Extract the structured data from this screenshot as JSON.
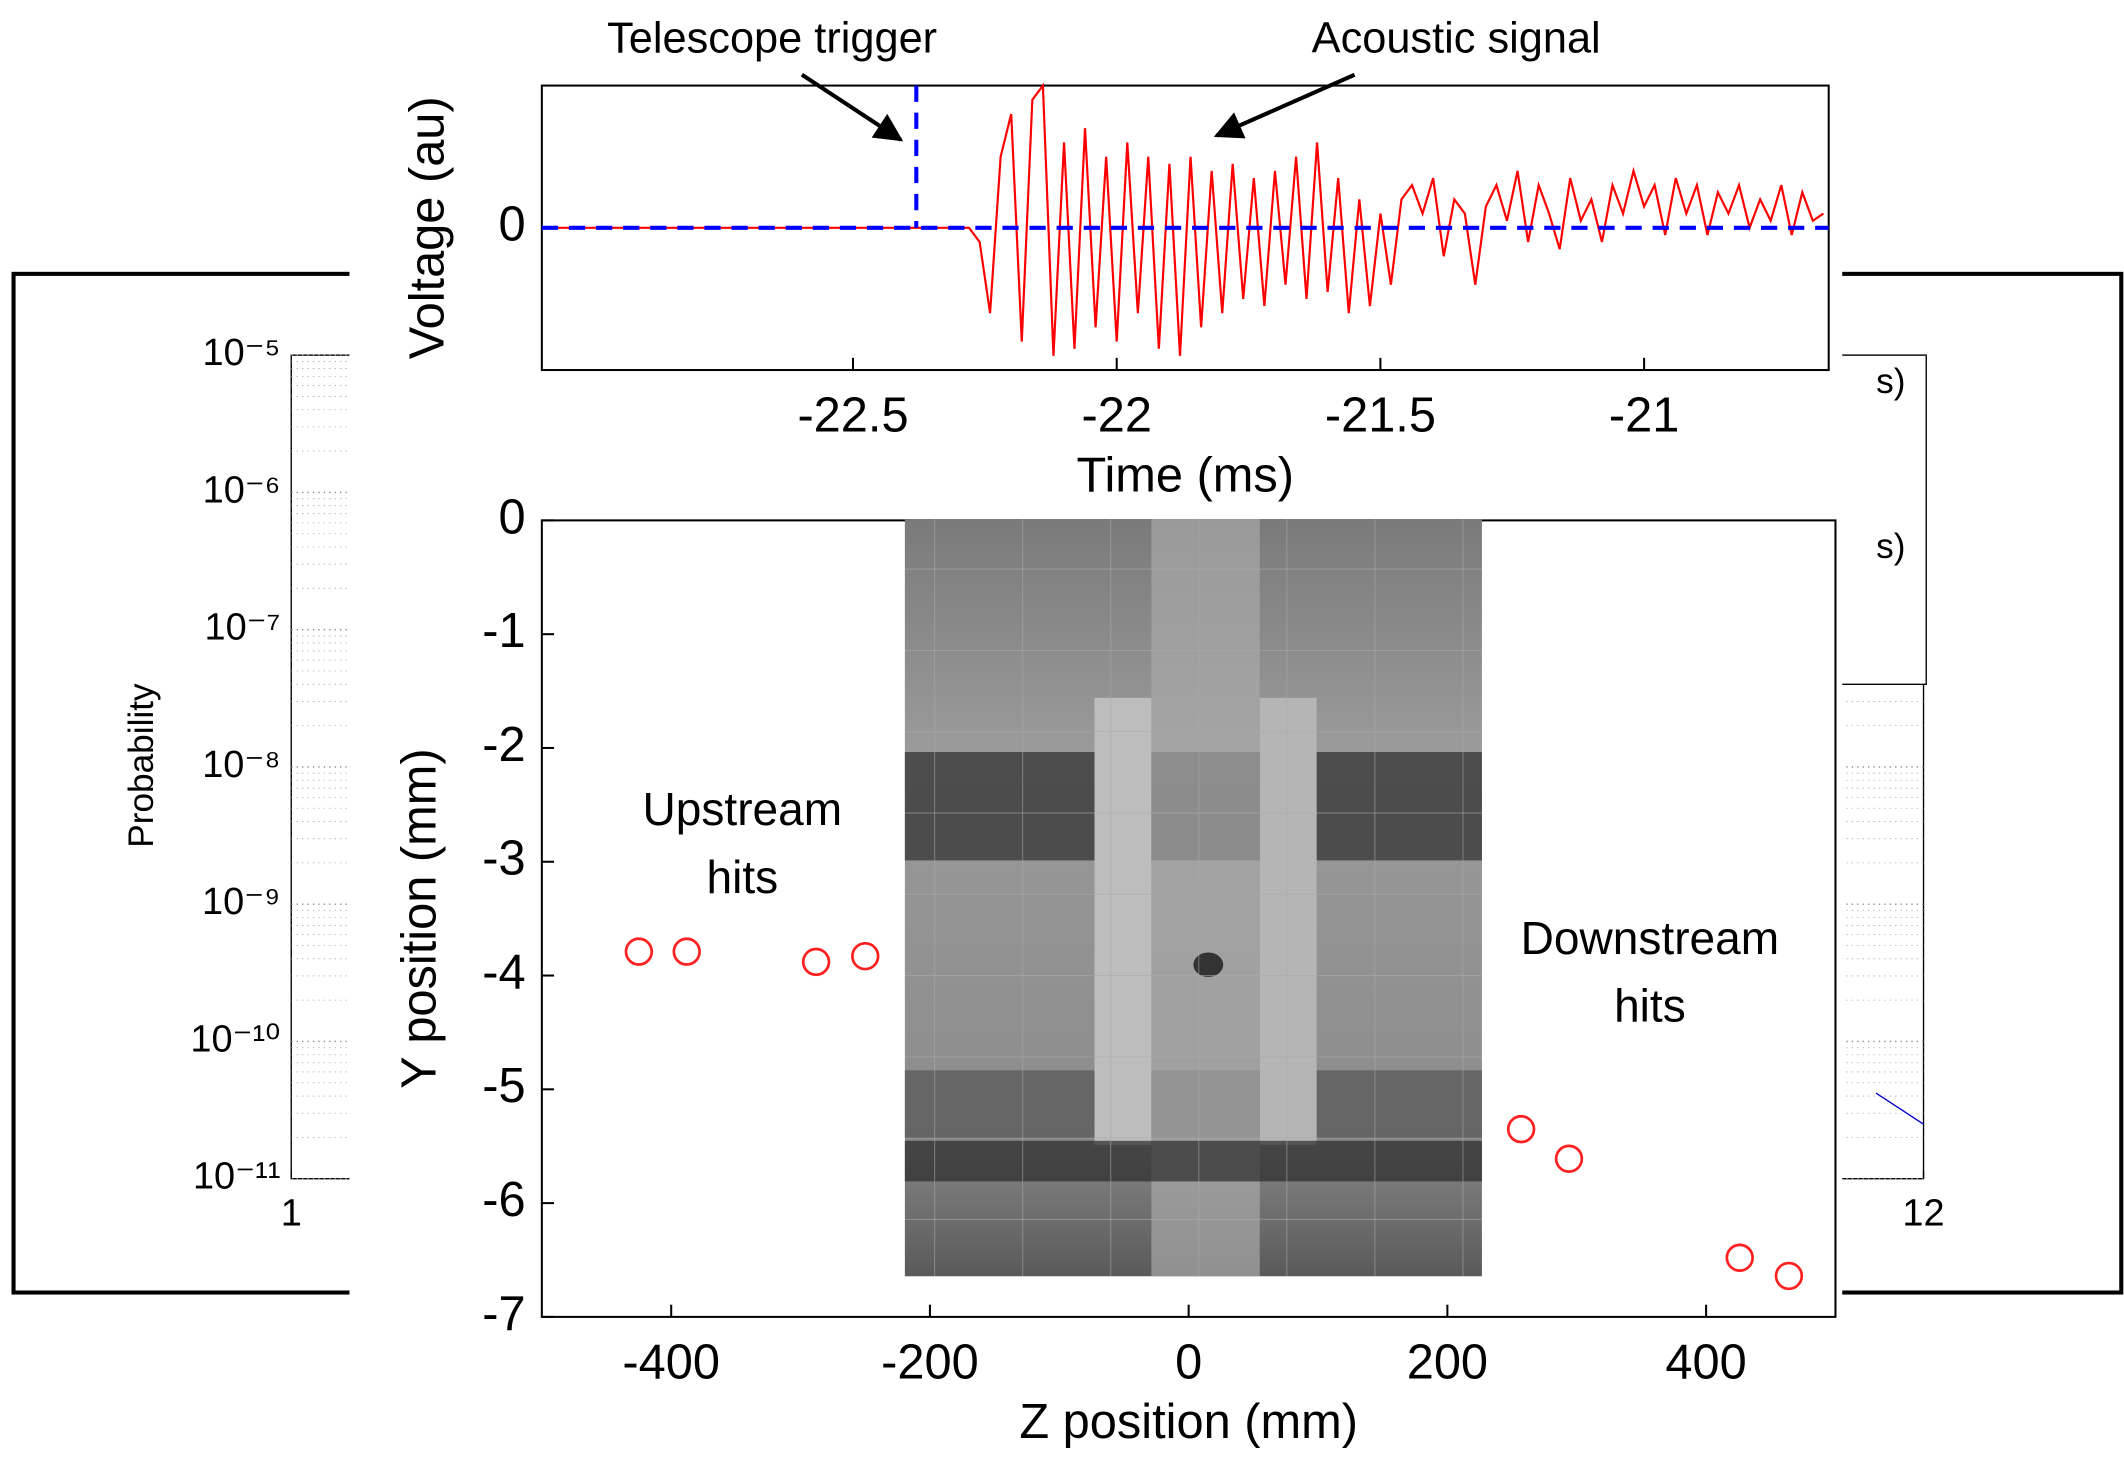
{
  "chart_data": [
    {
      "type": "line",
      "ylabel": "Probability",
      "log_y": true,
      "grid": true,
      "xlim": [
        1,
        12
      ],
      "xticks": [
        1,
        12
      ],
      "ylim": [
        1e-11,
        1e-05
      ],
      "yticks": [
        {
          "value": 1e-05,
          "label": "10⁻⁵"
        },
        {
          "value": 1e-06,
          "label": "10⁻⁶"
        },
        {
          "value": 1e-07,
          "label": "10⁻⁷"
        },
        {
          "value": 1e-08,
          "label": "10⁻⁸"
        },
        {
          "value": 1e-09,
          "label": "10⁻⁹"
        },
        {
          "value": 1e-10,
          "label": "10⁻¹⁰"
        },
        {
          "value": 1e-11,
          "label": "10⁻¹¹"
        }
      ],
      "legend_fragments": [
        "s)",
        "s)"
      ],
      "series": [
        {
          "color": "#0000cc",
          "x": [
            11.68,
            12
          ],
          "values": [
            4.2e-11,
            2.5e-11
          ]
        }
      ]
    },
    {
      "type": "line",
      "xlabel": "Time (ms)",
      "ylabel": "Voltage (au)",
      "xlim": [
        -23.09,
        -20.65
      ],
      "xticks": [
        -22.5,
        -22,
        -21.5,
        -21
      ],
      "ylim": [
        -1,
        1
      ],
      "yticks": [
        0
      ],
      "trigger_x": -22.38,
      "annotations": [
        "Telescope trigger",
        "Acoustic signal"
      ],
      "series": [
        {
          "color": "#ff0000",
          "x": [
            -23.09,
            -22.28,
            -22.26,
            -22.24,
            -22.22,
            -22.2,
            -22.18,
            -22.16,
            -22.14,
            -22.12,
            -22.1,
            -22.08,
            -22.06,
            -22.04,
            -22.02,
            -22,
            -21.98,
            -21.96,
            -21.94,
            -21.92,
            -21.9,
            -21.88,
            -21.86,
            -21.84,
            -21.82,
            -21.8,
            -21.78,
            -21.76,
            -21.74,
            -21.72,
            -21.7,
            -21.68,
            -21.66,
            -21.64,
            -21.62,
            -21.6,
            -21.58,
            -21.56,
            -21.54,
            -21.52,
            -21.5,
            -21.48,
            -21.46,
            -21.44,
            -21.42,
            -21.4,
            -21.38,
            -21.36,
            -21.34,
            -21.32,
            -21.3,
            -21.28,
            -21.26,
            -21.24,
            -21.22,
            -21.2,
            -21.18,
            -21.16,
            -21.14,
            -21.12,
            -21.1,
            -21.08,
            -21.06,
            -21.04,
            -21.02,
            -21,
            -20.98,
            -20.96,
            -20.94,
            -20.92,
            -20.9,
            -20.88,
            -20.86,
            -20.84,
            -20.82,
            -20.8,
            -20.78,
            -20.76,
            -20.74,
            -20.72,
            -20.7,
            -20.68,
            -20.66
          ],
          "values": [
            0,
            0,
            -0.1,
            -0.6,
            0.5,
            0.8,
            -0.8,
            0.9,
            1.0,
            -0.9,
            0.6,
            -0.85,
            0.7,
            -0.7,
            0.5,
            -0.8,
            0.6,
            -0.6,
            0.5,
            -0.85,
            0.45,
            -0.9,
            0.5,
            -0.7,
            0.4,
            -0.6,
            0.45,
            -0.5,
            0.35,
            -0.55,
            0.4,
            -0.4,
            0.5,
            -0.5,
            0.6,
            -0.45,
            0.35,
            -0.6,
            0.2,
            -0.55,
            0.1,
            -0.4,
            0.2,
            0.3,
            0.1,
            0.35,
            -0.2,
            0.2,
            0.1,
            -0.4,
            0.15,
            0.3,
            0.05,
            0.4,
            -0.1,
            0.3,
            0.1,
            -0.15,
            0.35,
            0.05,
            0.2,
            -0.1,
            0.3,
            0.1,
            0.4,
            0.15,
            0.3,
            -0.05,
            0.35,
            0.1,
            0.3,
            -0.05,
            0.25,
            0.1,
            0.3,
            0,
            0.2,
            0.05,
            0.3,
            -0.05,
            0.25,
            0.05,
            0.1
          ]
        },
        {
          "color": "#0000ff",
          "dashed": true,
          "x": [
            -23.09,
            -20.65
          ],
          "values": [
            0,
            0
          ]
        }
      ]
    },
    {
      "type": "scatter",
      "xlabel": "Z position (mm)",
      "ylabel": "Y position (mm)",
      "xlim": [
        -500,
        500
      ],
      "xticks": [
        -400,
        -200,
        0,
        200,
        400
      ],
      "ylim": [
        -7,
        0
      ],
      "yticks": [
        0,
        -1,
        -2,
        -3,
        -4,
        -5,
        -6,
        -7
      ],
      "annotations": [
        [
          "Upstream",
          "hits"
        ],
        [
          "Downstream",
          "hits"
        ]
      ],
      "series": [
        {
          "color": "#ff2020",
          "x": [
            -425,
            -388,
            -288,
            -250,
            257,
            294,
            426,
            464
          ],
          "values": [
            -3.79,
            -3.79,
            -3.88,
            -3.83,
            -5.35,
            -5.61,
            -6.48,
            -6.64
          ]
        }
      ]
    }
  ]
}
